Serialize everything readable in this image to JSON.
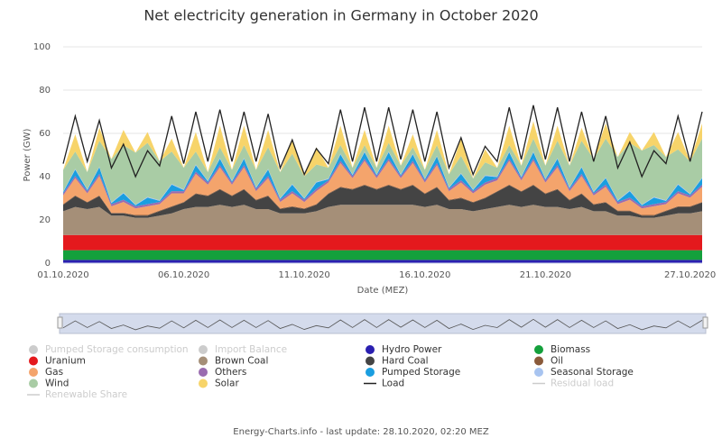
{
  "chart_data": {
    "type": "stacked-area",
    "title": "Net electricity generation in Germany in October 2020",
    "y_label": "Power (GW)",
    "x_label": "Date (MEZ)",
    "footer": "Energy-Charts.info - last update: 28.10.2020, 02:20 MEZ",
    "ylim": [
      0,
      100
    ],
    "yticks": [
      0,
      20,
      40,
      60,
      80,
      100
    ],
    "grid": true,
    "categories": [
      "01.10.2020",
      null,
      null,
      null,
      null,
      null,
      null,
      null,
      null,
      null,
      "06.10.2020",
      null,
      null,
      null,
      null,
      null,
      null,
      null,
      null,
      null,
      "11.10.2020",
      null,
      null,
      null,
      null,
      null,
      null,
      null,
      null,
      null,
      "16.10.2020",
      null,
      null,
      null,
      null,
      null,
      null,
      null,
      null,
      null,
      "21.10.2020",
      null,
      null,
      null,
      null,
      null,
      null,
      null,
      null,
      null,
      null,
      null,
      "27.10.2020",
      null
    ],
    "series": [
      {
        "name": "Pumped Storage consumption",
        "color": "#cccccc",
        "kind": "area",
        "visible": false
      },
      {
        "name": "Import Balance",
        "color": "#cccccc",
        "kind": "area",
        "visible": false
      },
      {
        "name": "Hydro Power",
        "color": "#2a1fb0",
        "kind": "area",
        "visible": true,
        "values": [
          1.5,
          1.5,
          1.5,
          1.5,
          1.5,
          1.5,
          1.5,
          1.5,
          1.5,
          1.5,
          1.5,
          1.5,
          1.5,
          1.5,
          1.5,
          1.5,
          1.5,
          1.5,
          1.5,
          1.5,
          1.5,
          1.5,
          1.5,
          1.5,
          1.5,
          1.5,
          1.5,
          1.5,
          1.5,
          1.5,
          1.5,
          1.5,
          1.5,
          1.5,
          1.5,
          1.5,
          1.5,
          1.5,
          1.5,
          1.5,
          1.5,
          1.5,
          1.5,
          1.5,
          1.5,
          1.5,
          1.5,
          1.5,
          1.5,
          1.5,
          1.5,
          1.5,
          1.5,
          1.5
        ]
      },
      {
        "name": "Biomass",
        "color": "#14a03c",
        "kind": "area",
        "visible": true,
        "values": [
          4.5,
          4.5,
          4.5,
          4.5,
          4.5,
          4.5,
          4.5,
          4.5,
          4.5,
          4.5,
          4.5,
          4.5,
          4.5,
          4.5,
          4.5,
          4.5,
          4.5,
          4.5,
          4.5,
          4.5,
          4.5,
          4.5,
          4.5,
          4.5,
          4.5,
          4.5,
          4.5,
          4.5,
          4.5,
          4.5,
          4.5,
          4.5,
          4.5,
          4.5,
          4.5,
          4.5,
          4.5,
          4.5,
          4.5,
          4.5,
          4.5,
          4.5,
          4.5,
          4.5,
          4.5,
          4.5,
          4.5,
          4.5,
          4.5,
          4.5,
          4.5,
          4.5,
          4.5,
          4.5
        ]
      },
      {
        "name": "Uranium",
        "color": "#e4191d",
        "kind": "area",
        "visible": true,
        "values": [
          7,
          7,
          7,
          7,
          7,
          7,
          7,
          7,
          7,
          7,
          7,
          7,
          7,
          7,
          7,
          7,
          7,
          7,
          7,
          7,
          7,
          7,
          7,
          7,
          7,
          7,
          7,
          7,
          7,
          7,
          7,
          7,
          7,
          7,
          7,
          7,
          7,
          7,
          7,
          7,
          7,
          7,
          7,
          7,
          7,
          7,
          7,
          7,
          7,
          7,
          7,
          7,
          7,
          7
        ]
      },
      {
        "name": "Brown Coal",
        "color": "#a58f78",
        "kind": "area",
        "visible": true,
        "values": [
          11,
          13,
          12,
          13,
          9,
          9,
          8,
          8,
          9,
          10,
          12,
          13,
          13,
          14,
          13,
          14,
          12,
          12,
          10,
          10,
          10,
          11,
          13,
          14,
          14,
          14,
          14,
          14,
          14,
          14,
          13,
          14,
          12,
          12,
          11,
          12,
          13,
          14,
          13,
          14,
          13,
          13,
          12,
          13,
          11,
          11,
          9,
          9,
          8,
          8,
          9,
          10,
          10,
          11
        ]
      },
      {
        "name": "Hard Coal",
        "color": "#444444",
        "kind": "area",
        "visible": true,
        "values": [
          3,
          5,
          3,
          5,
          1,
          1,
          1,
          1,
          2,
          3,
          3,
          6,
          5,
          7,
          5,
          7,
          4,
          6,
          2,
          3,
          2,
          3,
          6,
          8,
          7,
          9,
          7,
          9,
          7,
          9,
          6,
          8,
          4,
          5,
          4,
          5,
          7,
          9,
          7,
          9,
          6,
          8,
          4,
          6,
          3,
          4,
          2,
          2,
          1,
          1,
          2,
          3,
          3,
          4
        ]
      },
      {
        "name": "Oil",
        "color": "#8a5a3a",
        "kind": "area",
        "visible": true,
        "values": [
          0.3,
          0.3,
          0.3,
          0.3,
          0.3,
          0.3,
          0.3,
          0.3,
          0.3,
          0.3,
          0.3,
          0.3,
          0.3,
          0.3,
          0.3,
          0.3,
          0.3,
          0.3,
          0.3,
          0.3,
          0.3,
          0.3,
          0.3,
          0.3,
          0.3,
          0.3,
          0.3,
          0.3,
          0.3,
          0.3,
          0.3,
          0.3,
          0.3,
          0.3,
          0.3,
          0.3,
          0.3,
          0.3,
          0.3,
          0.3,
          0.3,
          0.3,
          0.3,
          0.3,
          0.3,
          0.3,
          0.3,
          0.3,
          0.3,
          0.3,
          0.3,
          0.3,
          0.3,
          0.3
        ]
      },
      {
        "name": "Gas",
        "color": "#f4a46c",
        "kind": "area",
        "visible": true,
        "values": [
          4,
          8,
          4,
          9,
          3,
          5,
          3,
          4,
          3,
          6,
          4,
          9,
          5,
          10,
          5,
          10,
          4,
          8,
          3,
          6,
          3,
          6,
          5,
          11,
          5,
          11,
          5,
          11,
          5,
          10,
          5,
          10,
          4,
          7,
          4,
          6,
          5,
          11,
          5,
          11,
          5,
          10,
          4,
          8,
          4,
          7,
          3,
          5,
          3,
          4,
          3,
          6,
          4,
          7
        ]
      },
      {
        "name": "Others",
        "color": "#9a6cb0",
        "kind": "area",
        "visible": true,
        "values": [
          1,
          1,
          1,
          1,
          1,
          1,
          1,
          1,
          1,
          1,
          1,
          1,
          1,
          1,
          1,
          1,
          1,
          1,
          1,
          1,
          1,
          1,
          1,
          1,
          1,
          1,
          1,
          1,
          1,
          1,
          1,
          1,
          1,
          1,
          1,
          1,
          1,
          1,
          1,
          1,
          1,
          1,
          1,
          1,
          1,
          1,
          1,
          1,
          1,
          1,
          1,
          1,
          1,
          1
        ]
      },
      {
        "name": "Pumped Storage",
        "color": "#1a9ee0",
        "kind": "area",
        "visible": true,
        "values": [
          0.5,
          3,
          0.5,
          3,
          0.5,
          3,
          0.5,
          3,
          0.5,
          3,
          0.5,
          3,
          0.5,
          3,
          0.5,
          3,
          0.5,
          3,
          0.5,
          3,
          0.5,
          3,
          0.5,
          3,
          0.5,
          3,
          0.5,
          3,
          0.5,
          3,
          0.5,
          3,
          0.5,
          3,
          0.5,
          3,
          0.5,
          3,
          0.5,
          3,
          0.5,
          3,
          0.5,
          3,
          0.5,
          3,
          0.5,
          3,
          0.5,
          3,
          0.5,
          3,
          0.5,
          3
        ]
      },
      {
        "name": "Seasonal Storage",
        "color": "#a8c4f0",
        "kind": "area",
        "visible": true,
        "values": [
          0.3,
          0.3,
          0.3,
          0.3,
          0.3,
          0.3,
          0.3,
          0.3,
          0.3,
          0.3,
          0.3,
          0.3,
          0.3,
          0.3,
          0.3,
          0.3,
          0.3,
          0.3,
          0.3,
          0.3,
          0.3,
          0.3,
          0.3,
          0.3,
          0.3,
          0.3,
          0.3,
          0.3,
          0.3,
          0.3,
          0.3,
          0.3,
          0.3,
          0.3,
          0.3,
          0.3,
          0.3,
          0.3,
          0.3,
          0.3,
          0.3,
          0.3,
          0.3,
          0.3,
          0.3,
          0.3,
          0.3,
          0.3,
          0.3,
          0.3,
          0.3,
          0.3,
          0.3,
          0.3
        ]
      },
      {
        "name": "Wind",
        "color": "#a9cca5",
        "kind": "area",
        "visible": true,
        "values": [
          10,
          8,
          8,
          12,
          20,
          22,
          24,
          25,
          18,
          15,
          10,
          6,
          4,
          5,
          5,
          6,
          8,
          10,
          12,
          14,
          10,
          8,
          5,
          4,
          3,
          3,
          3,
          4,
          4,
          3,
          4,
          5,
          6,
          8,
          5,
          6,
          4,
          3,
          5,
          6,
          6,
          8,
          10,
          12,
          15,
          18,
          20,
          22,
          25,
          24,
          20,
          16,
          15,
          18
        ]
      },
      {
        "name": "Solar",
        "color": "#f7d46a",
        "kind": "area",
        "visible": true,
        "values": [
          0,
          8,
          0,
          6,
          0,
          7,
          0,
          5,
          0,
          6,
          0,
          9,
          0,
          10,
          0,
          9,
          0,
          8,
          0,
          7,
          0,
          8,
          0,
          9,
          0,
          7,
          0,
          8,
          0,
          6,
          0,
          7,
          0,
          8,
          0,
          6,
          0,
          9,
          0,
          8,
          0,
          7,
          0,
          6,
          0,
          7,
          0,
          5,
          0,
          6,
          0,
          8,
          0,
          7
        ]
      },
      {
        "name": "Load",
        "color": "#222222",
        "kind": "line",
        "visible": true,
        "values": [
          46,
          68,
          47,
          66,
          44,
          55,
          40,
          52,
          45,
          68,
          46,
          70,
          47,
          71,
          47,
          70,
          47,
          69,
          44,
          57,
          41,
          53,
          46,
          71,
          47,
          72,
          47,
          72,
          48,
          71,
          47,
          70,
          44,
          58,
          41,
          54,
          47,
          72,
          48,
          73,
          48,
          72,
          47,
          70,
          47,
          68,
          44,
          56,
          40,
          52,
          46,
          68,
          47,
          70
        ]
      },
      {
        "name": "Residual load",
        "color": "#cccccc",
        "kind": "line",
        "visible": false
      },
      {
        "name": "Renewable Share",
        "color": "#cccccc",
        "kind": "line",
        "visible": false
      }
    ]
  }
}
